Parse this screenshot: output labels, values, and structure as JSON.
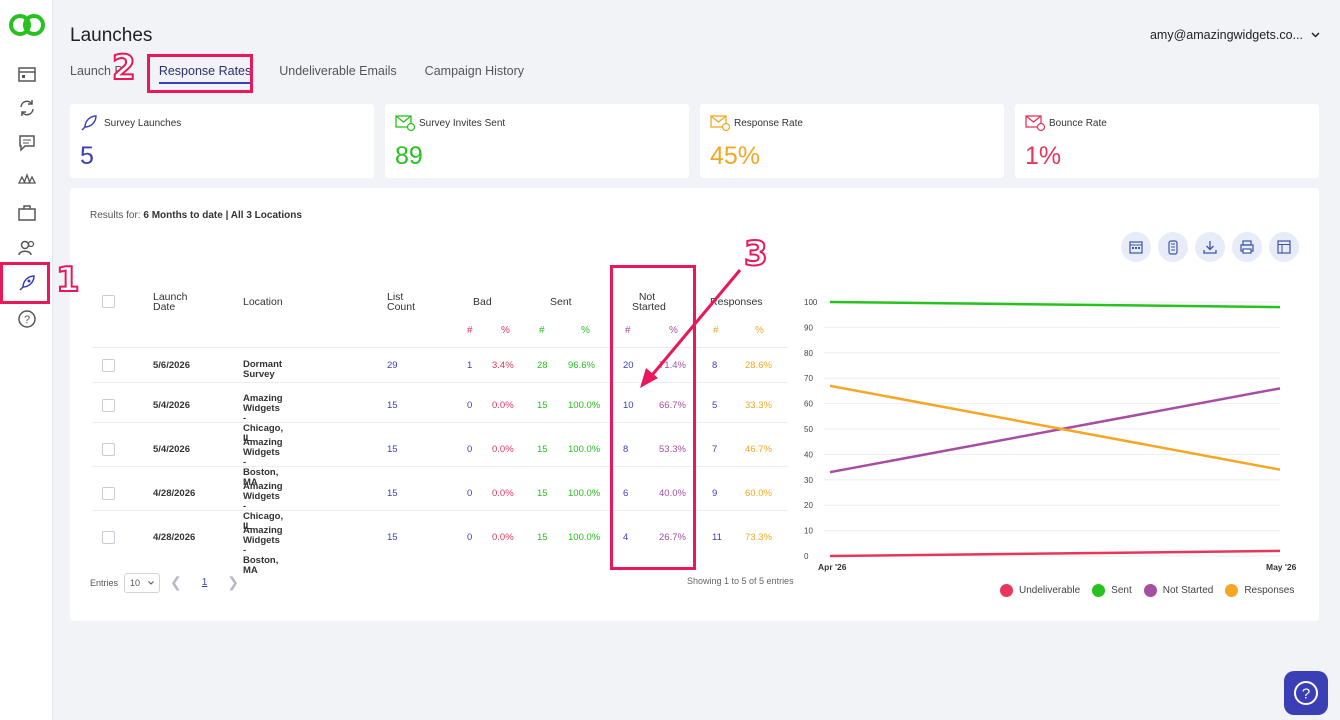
{
  "header": {
    "title": "Launches",
    "user_email": "amy@amazingwidgets.co..."
  },
  "tabs": [
    {
      "label": "Launch P"
    },
    {
      "label": "Response Rates"
    },
    {
      "label": "Undeliverable Emails"
    },
    {
      "label": "Campaign History"
    }
  ],
  "stats": [
    {
      "label": "Survey Launches",
      "value": "5",
      "color": "#3b3fb6",
      "icon": "rocket-icon"
    },
    {
      "label": "Survey Invites Sent",
      "value": "89",
      "color": "#27c21d",
      "icon": "envelope-icon"
    },
    {
      "label": "Response Rate",
      "value": "45%",
      "color": "#f5a623",
      "icon": "envelope-icon"
    },
    {
      "label": "Bounce Rate",
      "value": "1%",
      "color": "#e8355a",
      "icon": "envelope-icon"
    }
  ],
  "results": {
    "prefix": "Results for: ",
    "value": "6 Months to date | All 3 Locations"
  },
  "table": {
    "headers": {
      "launch_date_1": "Launch",
      "launch_date_2": "Date",
      "location": "Location",
      "list_count_1": "List",
      "list_count_2": "Count",
      "bad": "Bad",
      "sent": "Sent",
      "not_started_1": "Not",
      "not_started_2": "Started",
      "responses": "Responses",
      "hash": "#",
      "pct": "%"
    },
    "rows": [
      {
        "date": "5/6/2026",
        "loc1": "Dormant Survey",
        "loc2": "",
        "count": "29",
        "bad_n": "1",
        "bad_p": "3.4%",
        "sent_n": "28",
        "sent_p": "96.6%",
        "ns_n": "20",
        "ns_p": "71.4%",
        "resp_n": "8",
        "resp_p": "28.6%"
      },
      {
        "date": "5/4/2026",
        "loc1": "Amazing Widgets -",
        "loc2": "Chicago, IL",
        "count": "15",
        "bad_n": "0",
        "bad_p": "0.0%",
        "sent_n": "15",
        "sent_p": "100.0%",
        "ns_n": "10",
        "ns_p": "66.7%",
        "resp_n": "5",
        "resp_p": "33.3%"
      },
      {
        "date": "5/4/2026",
        "loc1": "Amazing Widgets -",
        "loc2": "Boston, MA",
        "count": "15",
        "bad_n": "0",
        "bad_p": "0.0%",
        "sent_n": "15",
        "sent_p": "100.0%",
        "ns_n": "8",
        "ns_p": "53.3%",
        "resp_n": "7",
        "resp_p": "46.7%"
      },
      {
        "date": "4/28/2026",
        "loc1": "Amazing Widgets -",
        "loc2": "Chicago, IL",
        "count": "15",
        "bad_n": "0",
        "bad_p": "0.0%",
        "sent_n": "15",
        "sent_p": "100.0%",
        "ns_n": "6",
        "ns_p": "40.0%",
        "resp_n": "9",
        "resp_p": "60.0%"
      },
      {
        "date": "4/28/2026",
        "loc1": "Amazing Widgets -",
        "loc2": "Boston, MA",
        "count": "15",
        "bad_n": "0",
        "bad_p": "0.0%",
        "sent_n": "15",
        "sent_p": "100.0%",
        "ns_n": "4",
        "ns_p": "26.7%",
        "resp_n": "11",
        "resp_p": "73.3%"
      }
    ]
  },
  "pagination": {
    "entries_label": "Entries",
    "entries_value": "10",
    "page": "1",
    "showing": "Showing 1 to 5 of 5 entries"
  },
  "annotations": {
    "n1": "1",
    "n2": "2",
    "n3": "3"
  },
  "chart_data": {
    "type": "line",
    "x": [
      "Apr '26",
      "May '26"
    ],
    "ylim": [
      0,
      100
    ],
    "yticks": [
      0,
      10,
      20,
      30,
      40,
      50,
      60,
      70,
      80,
      90,
      100
    ],
    "grid": true,
    "legend": "bottom-right",
    "series": [
      {
        "name": "Undeliverable",
        "color": "#e8355a",
        "values": [
          0,
          2
        ]
      },
      {
        "name": "Sent",
        "color": "#27c21d",
        "values": [
          100,
          98
        ]
      },
      {
        "name": "Not Started",
        "color": "#a64ea3",
        "values": [
          33,
          66
        ]
      },
      {
        "name": "Responses",
        "color": "#f5a623",
        "values": [
          67,
          34
        ]
      }
    ]
  }
}
